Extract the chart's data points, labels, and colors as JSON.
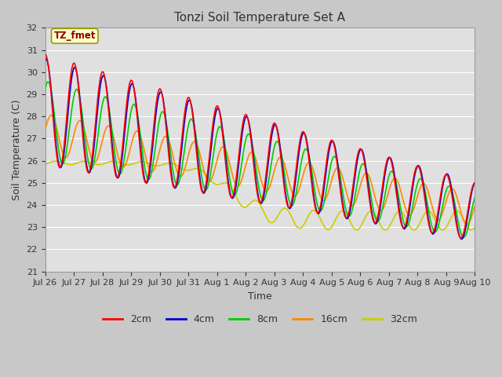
{
  "title": "Tonzi Soil Temperature Set A",
  "xlabel": "Time",
  "ylabel": "Soil Temperature (C)",
  "ylim": [
    21.0,
    32.0
  ],
  "yticks": [
    21.0,
    22.0,
    23.0,
    24.0,
    25.0,
    26.0,
    27.0,
    28.0,
    29.0,
    30.0,
    31.0,
    32.0
  ],
  "fig_bg_color": "#c8c8c8",
  "plot_bg": "#e0e0e0",
  "legend_label": "TZ_fmet",
  "legend_box_color": "#ffffcc",
  "legend_box_border": "#999900",
  "series_colors": {
    "2cm": "#ff0000",
    "4cm": "#0000cc",
    "8cm": "#00cc00",
    "16cm": "#ff8800",
    "32cm": "#cccc00"
  },
  "series_linewidth": 1.2,
  "x_tick_labels": [
    "Jul 26",
    "Jul 27",
    "Jul 28",
    "Jul 29",
    "Jul 30",
    "Jul 31",
    "Aug 1",
    "Aug 2",
    "Aug 3",
    "Aug 4",
    "Aug 5",
    "Aug 6",
    "Aug 7",
    "Aug 8",
    "Aug 9",
    "Aug 10"
  ],
  "n_points": 480
}
